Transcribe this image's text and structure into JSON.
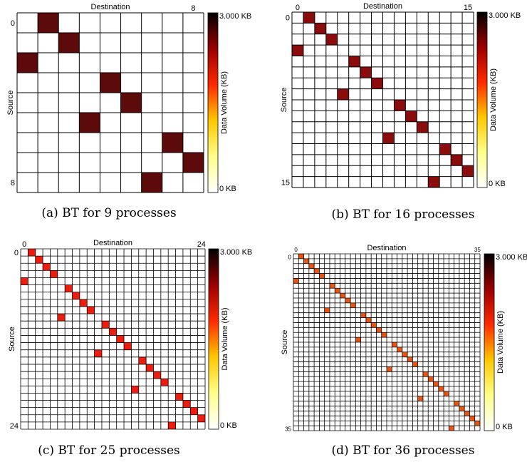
{
  "chart_data": [
    {
      "type": "heatmap",
      "caption": "(a) BT for 9 processes",
      "xlabel": "Destination",
      "ylabel": "Source",
      "x_tick_labels": [
        "",
        "8"
      ],
      "y_tick_labels": [
        "0",
        "8"
      ],
      "n": 9,
      "colorbar_label": "Data Volume (KB)",
      "colorbar_max_label": "3.000 KB",
      "colorbar_min_label": "0 KB",
      "cells": [
        [
          0,
          1
        ],
        [
          1,
          2
        ],
        [
          2,
          0
        ],
        [
          3,
          4
        ],
        [
          4,
          5
        ],
        [
          5,
          3
        ],
        [
          6,
          7
        ],
        [
          7,
          8
        ],
        [
          8,
          6
        ]
      ],
      "cell_color": "#5c0a0a"
    },
    {
      "type": "heatmap",
      "caption": "(b) BT for 16 processes",
      "xlabel": "Destination",
      "ylabel": "Source",
      "x_tick_labels": [
        "0",
        "15"
      ],
      "y_tick_labels": [
        "0",
        "15"
      ],
      "n": 16,
      "colorbar_label": "Data Volume (KB)",
      "colorbar_max_label": "3.000 KB",
      "colorbar_min_label": "0 KB",
      "cells": [
        [
          0,
          1
        ],
        [
          1,
          2
        ],
        [
          2,
          3
        ],
        [
          3,
          0
        ],
        [
          4,
          5
        ],
        [
          5,
          6
        ],
        [
          6,
          7
        ],
        [
          7,
          4
        ],
        [
          8,
          9
        ],
        [
          9,
          10
        ],
        [
          10,
          11
        ],
        [
          11,
          8
        ],
        [
          12,
          13
        ],
        [
          13,
          14
        ],
        [
          14,
          15
        ],
        [
          15,
          12
        ]
      ],
      "cell_color": "#8a0c0c"
    },
    {
      "type": "heatmap",
      "caption": "(c) BT for 25 processes",
      "xlabel": "Destination",
      "ylabel": "Source",
      "x_tick_labels": [
        "0",
        "24"
      ],
      "y_tick_labels": [
        "0",
        "24"
      ],
      "n": 25,
      "colorbar_label": "Data Volume (KB)",
      "colorbar_max_label": "3.000 KB",
      "colorbar_min_label": "0 KB",
      "cells": [
        [
          0,
          1
        ],
        [
          1,
          2
        ],
        [
          2,
          3
        ],
        [
          3,
          4
        ],
        [
          4,
          0
        ],
        [
          5,
          6
        ],
        [
          6,
          7
        ],
        [
          7,
          8
        ],
        [
          8,
          9
        ],
        [
          9,
          5
        ],
        [
          10,
          11
        ],
        [
          11,
          12
        ],
        [
          12,
          13
        ],
        [
          13,
          14
        ],
        [
          14,
          10
        ],
        [
          15,
          16
        ],
        [
          16,
          17
        ],
        [
          17,
          18
        ],
        [
          18,
          19
        ],
        [
          19,
          15
        ],
        [
          20,
          21
        ],
        [
          21,
          22
        ],
        [
          22,
          23
        ],
        [
          23,
          24
        ],
        [
          24,
          20
        ]
      ],
      "cell_color": "#ee1c0c"
    },
    {
      "type": "heatmap",
      "caption": "(d) BT for 36 processes",
      "xlabel": "Destination",
      "ylabel": "Source",
      "x_tick_labels": [
        "0",
        "35"
      ],
      "y_tick_labels": [
        "0",
        "35"
      ],
      "n": 36,
      "colorbar_label": "Data Volume (KB)",
      "colorbar_max_label": "3.000 KB",
      "colorbar_min_label": "0 KB",
      "cells": [
        [
          0,
          1
        ],
        [
          1,
          2
        ],
        [
          2,
          3
        ],
        [
          3,
          4
        ],
        [
          4,
          5
        ],
        [
          5,
          0
        ],
        [
          6,
          7
        ],
        [
          7,
          8
        ],
        [
          8,
          9
        ],
        [
          9,
          10
        ],
        [
          10,
          11
        ],
        [
          11,
          6
        ],
        [
          12,
          13
        ],
        [
          13,
          14
        ],
        [
          14,
          15
        ],
        [
          15,
          16
        ],
        [
          16,
          17
        ],
        [
          17,
          12
        ],
        [
          18,
          19
        ],
        [
          19,
          20
        ],
        [
          20,
          21
        ],
        [
          21,
          22
        ],
        [
          22,
          23
        ],
        [
          23,
          18
        ],
        [
          24,
          25
        ],
        [
          25,
          26
        ],
        [
          26,
          27
        ],
        [
          27,
          28
        ],
        [
          28,
          29
        ],
        [
          29,
          24
        ],
        [
          30,
          31
        ],
        [
          31,
          32
        ],
        [
          32,
          33
        ],
        [
          33,
          34
        ],
        [
          34,
          35
        ],
        [
          35,
          30
        ]
      ],
      "cell_color": "#e8550e"
    }
  ]
}
